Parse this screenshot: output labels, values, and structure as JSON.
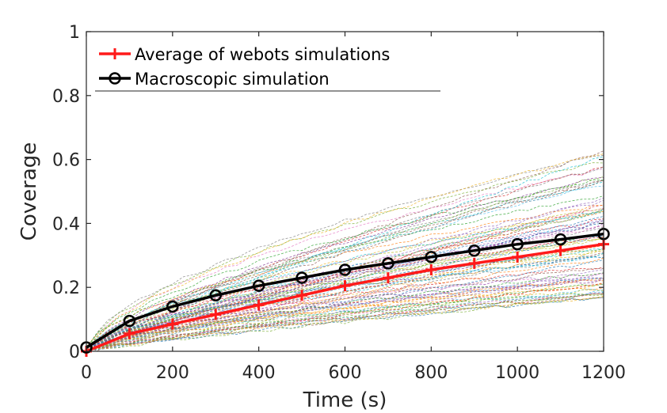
{
  "chart_data": {
    "type": "line",
    "xlabel": "Time (s)",
    "ylabel": "Coverage",
    "xlim": [
      0,
      1200
    ],
    "ylim": [
      0,
      1
    ],
    "x_ticks": [
      "0",
      "200",
      "400",
      "600",
      "800",
      "1000",
      "1200"
    ],
    "y_ticks": [
      "0",
      "0.2",
      "0.4",
      "0.6",
      "0.8",
      "1"
    ],
    "grid": false,
    "legend_position": "top-left",
    "x": [
      0,
      100,
      200,
      300,
      400,
      500,
      600,
      700,
      800,
      900,
      1000,
      1100,
      1200
    ],
    "series": [
      {
        "name": "Average of webots simulations",
        "color": "#ff1a1a",
        "marker": "plus",
        "values": [
          0.0,
          0.055,
          0.085,
          0.115,
          0.145,
          0.175,
          0.205,
          0.23,
          0.255,
          0.275,
          0.295,
          0.315,
          0.335
        ]
      },
      {
        "name": "Macroscopic simulation",
        "color": "#000000",
        "marker": "circle",
        "values": [
          0.012,
          0.095,
          0.14,
          0.175,
          0.205,
          0.23,
          0.255,
          0.275,
          0.295,
          0.315,
          0.335,
          0.35,
          0.367
        ]
      }
    ],
    "background_runs": {
      "count": 90,
      "style": "dashed",
      "final_value_range": [
        0.17,
        0.65
      ]
    }
  }
}
